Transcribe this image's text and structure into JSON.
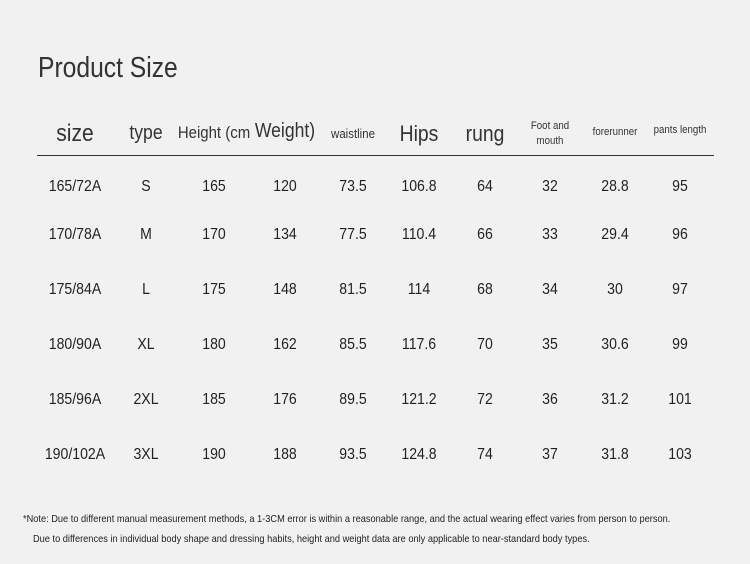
{
  "title": "Product Size",
  "table": {
    "headers": [
      "size",
      "type",
      "Height (cm",
      "Weight)",
      "waistline",
      "Hips",
      "rung",
      "Foot and mouth",
      "forerunner",
      "pants length"
    ],
    "rows": [
      [
        "165/72A",
        "S",
        "165",
        "120",
        "73.5",
        "106.8",
        "64",
        "32",
        "28.8",
        "95"
      ],
      [
        "170/78A",
        "M",
        "170",
        "134",
        "77.5",
        "110.4",
        "66",
        "33",
        "29.4",
        "96"
      ],
      [
        "175/84A",
        "L",
        "175",
        "148",
        "81.5",
        "114",
        "68",
        "34",
        "30",
        "97"
      ],
      [
        "180/90A",
        "XL",
        "180",
        "162",
        "85.5",
        "117.6",
        "70",
        "35",
        "30.6",
        "99"
      ],
      [
        "185/96A",
        "2XL",
        "185",
        "176",
        "89.5",
        "121.2",
        "72",
        "36",
        "31.2",
        "101"
      ],
      [
        "190/102A",
        "3XL",
        "190",
        "188",
        "93.5",
        "124.8",
        "74",
        "37",
        "31.8",
        "103"
      ]
    ]
  },
  "notes": [
    "*Note: Due to different manual measurement methods, a 1-3CM error is within a reasonable range, and the actual wearing effect varies from person to person.",
    "Due to differences in individual body shape and dressing habits, height and weight data are only applicable to near-standard body types."
  ]
}
